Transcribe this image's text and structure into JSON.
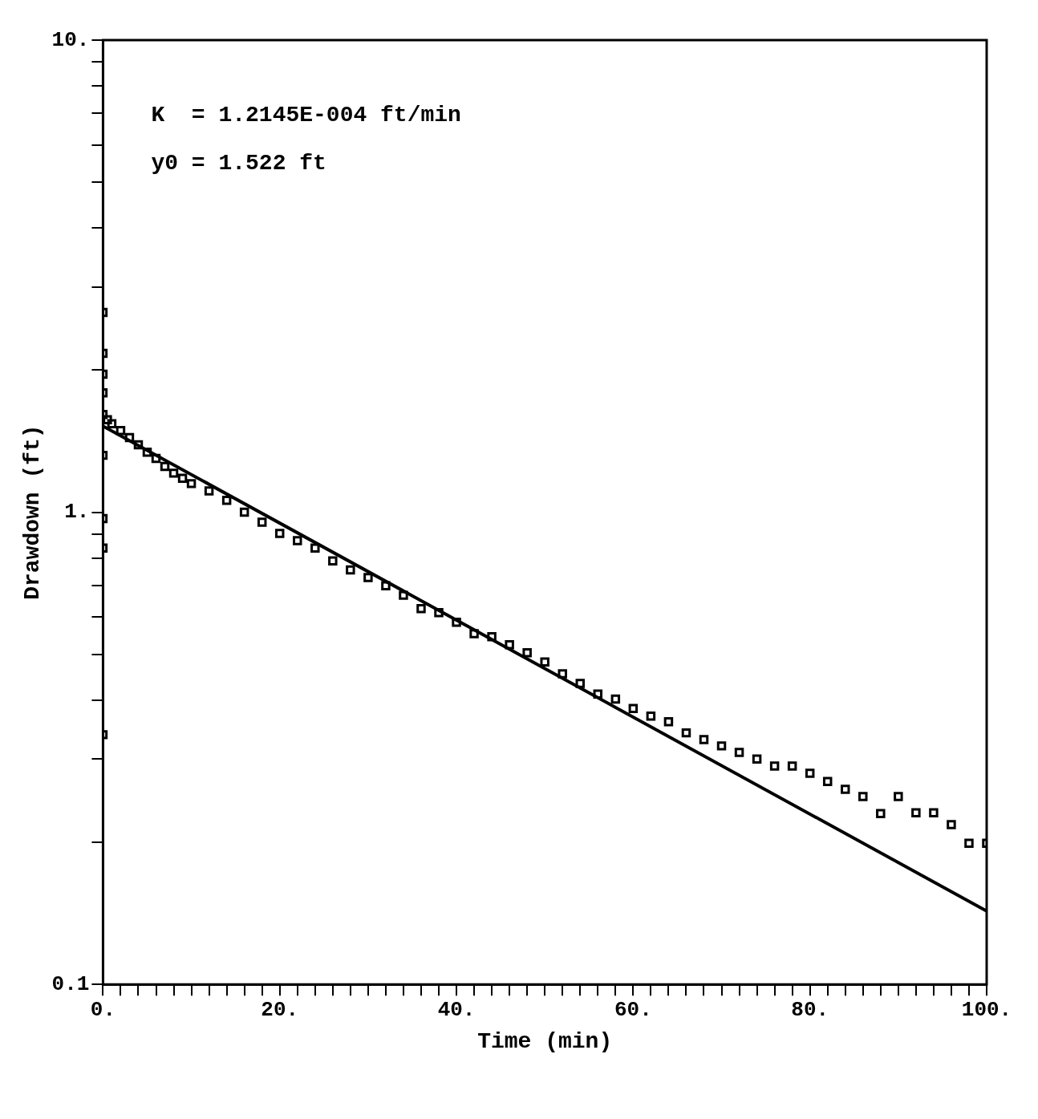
{
  "chart_data": {
    "type": "scatter",
    "xlabel": "Time (min)",
    "ylabel": "Drawdown (ft)",
    "annotations": [
      "K  = 1.2145E-004 ft/min",
      "y0 = 1.522 ft"
    ],
    "xlim": [
      0,
      100
    ],
    "ylim": [
      0.1,
      10
    ],
    "log": "y",
    "grid": false,
    "legend": false,
    "xticks": [
      {
        "value": 0,
        "label": "0."
      },
      {
        "value": 2,
        "label": null
      },
      {
        "value": 4,
        "label": null
      },
      {
        "value": 6,
        "label": null
      },
      {
        "value": 8,
        "label": null
      },
      {
        "value": 10,
        "label": null
      },
      {
        "value": 12,
        "label": null
      },
      {
        "value": 14,
        "label": null
      },
      {
        "value": 16,
        "label": null
      },
      {
        "value": 18,
        "label": null
      },
      {
        "value": 20,
        "label": "20."
      },
      {
        "value": 22,
        "label": null
      },
      {
        "value": 24,
        "label": null
      },
      {
        "value": 26,
        "label": null
      },
      {
        "value": 28,
        "label": null
      },
      {
        "value": 30,
        "label": null
      },
      {
        "value": 32,
        "label": null
      },
      {
        "value": 34,
        "label": null
      },
      {
        "value": 36,
        "label": null
      },
      {
        "value": 38,
        "label": null
      },
      {
        "value": 40,
        "label": "40."
      },
      {
        "value": 42,
        "label": null
      },
      {
        "value": 44,
        "label": null
      },
      {
        "value": 46,
        "label": null
      },
      {
        "value": 48,
        "label": null
      },
      {
        "value": 50,
        "label": null
      },
      {
        "value": 52,
        "label": null
      },
      {
        "value": 54,
        "label": null
      },
      {
        "value": 56,
        "label": null
      },
      {
        "value": 58,
        "label": null
      },
      {
        "value": 60,
        "label": "60."
      },
      {
        "value": 62,
        "label": null
      },
      {
        "value": 64,
        "label": null
      },
      {
        "value": 66,
        "label": null
      },
      {
        "value": 68,
        "label": null
      },
      {
        "value": 70,
        "label": null
      },
      {
        "value": 72,
        "label": null
      },
      {
        "value": 74,
        "label": null
      },
      {
        "value": 76,
        "label": null
      },
      {
        "value": 78,
        "label": null
      },
      {
        "value": 80,
        "label": "80."
      },
      {
        "value": 82,
        "label": null
      },
      {
        "value": 84,
        "label": null
      },
      {
        "value": 86,
        "label": null
      },
      {
        "value": 88,
        "label": null
      },
      {
        "value": 90,
        "label": null
      },
      {
        "value": 92,
        "label": null
      },
      {
        "value": 94,
        "label": null
      },
      {
        "value": 96,
        "label": null
      },
      {
        "value": 98,
        "label": null
      },
      {
        "value": 100,
        "label": "100."
      }
    ],
    "yticks": [
      {
        "value": 0.1,
        "label": "0.1"
      },
      {
        "value": 0.2,
        "label": null
      },
      {
        "value": 0.3,
        "label": null
      },
      {
        "value": 0.4,
        "label": null
      },
      {
        "value": 0.5,
        "label": null
      },
      {
        "value": 0.6,
        "label": null
      },
      {
        "value": 0.7,
        "label": null
      },
      {
        "value": 0.8,
        "label": null
      },
      {
        "value": 0.9,
        "label": null
      },
      {
        "value": 1,
        "label": "1."
      },
      {
        "value": 2,
        "label": null
      },
      {
        "value": 3,
        "label": null
      },
      {
        "value": 4,
        "label": null
      },
      {
        "value": 5,
        "label": null
      },
      {
        "value": 6,
        "label": null
      },
      {
        "value": 7,
        "label": null
      },
      {
        "value": 8,
        "label": null
      },
      {
        "value": 9,
        "label": null
      },
      {
        "value": 10,
        "label": "10."
      }
    ],
    "series": [
      {
        "marker": "square",
        "color": "#000000",
        "x": [
          0,
          0,
          0,
          0,
          0,
          0,
          0,
          0,
          0,
          0.5,
          1,
          2,
          3,
          4,
          5,
          6,
          7,
          8,
          9,
          10,
          12,
          14,
          16,
          18,
          20,
          22,
          24,
          26,
          28,
          30,
          32,
          34,
          36,
          38,
          40,
          42,
          44,
          46,
          48,
          50,
          52,
          54,
          56,
          58,
          60,
          62,
          64,
          66,
          68,
          70,
          72,
          74,
          76,
          78,
          80,
          82,
          84,
          86,
          88,
          90,
          92,
          94,
          96,
          98,
          100
        ],
        "values": [
          2.65,
          2.17,
          1.96,
          1.79,
          1.61,
          1.32,
          0.97,
          0.84,
          0.338,
          1.57,
          1.54,
          1.49,
          1.44,
          1.39,
          1.34,
          1.3,
          1.25,
          1.21,
          1.18,
          1.15,
          1.11,
          1.06,
          1.0,
          0.953,
          0.902,
          0.871,
          0.84,
          0.789,
          0.755,
          0.727,
          0.699,
          0.667,
          0.625,
          0.613,
          0.585,
          0.553,
          0.545,
          0.524,
          0.504,
          0.482,
          0.455,
          0.434,
          0.412,
          0.402,
          0.384,
          0.37,
          0.36,
          0.341,
          0.33,
          0.32,
          0.31,
          0.3,
          0.29,
          0.29,
          0.28,
          0.269,
          0.259,
          0.25,
          0.23,
          0.25,
          0.231,
          0.231,
          0.218,
          0.199,
          0.199
        ]
      },
      {
        "type": "line",
        "marker": "none",
        "color": "#000000",
        "x": [
          0,
          100
        ],
        "values": [
          1.522,
          0.143
        ]
      }
    ]
  }
}
